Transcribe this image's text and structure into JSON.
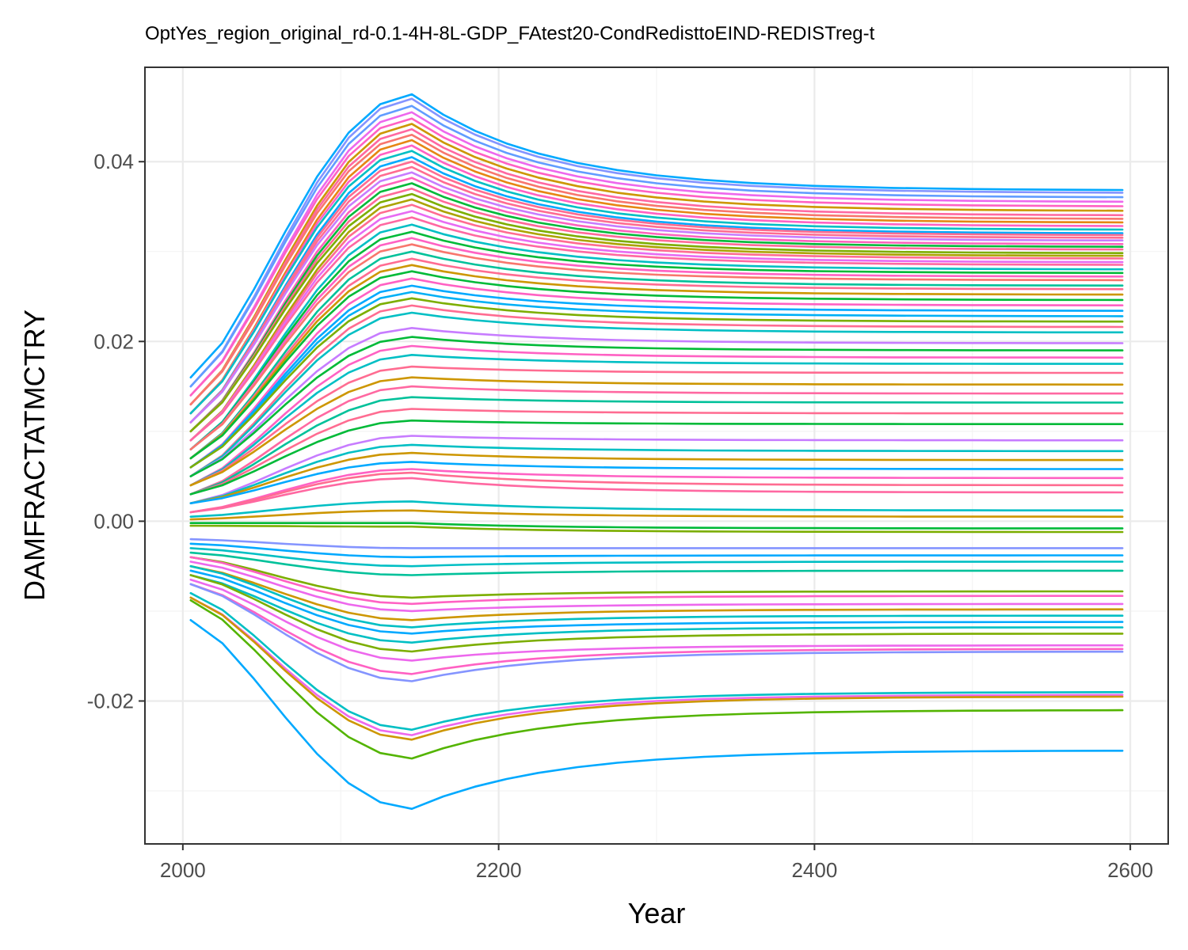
{
  "chart_data": {
    "type": "line",
    "title": "OptYes_region_original_rd-0.1-4H-8L-GDP_FAtest20-CondRedisttoEIND-REDISTreg-t",
    "xlabel": "Year",
    "ylabel": "DAMFRACTATMCTRY",
    "xlim": [
      1976,
      2624
    ],
    "ylim": [
      -0.0359,
      0.0505
    ],
    "x_ticks": [
      2000,
      2200,
      2400,
      2600
    ],
    "x_tick_labels": [
      "2000",
      "2200",
      "2400",
      "2600"
    ],
    "y_ticks": [
      -0.02,
      0.0,
      0.02,
      0.04
    ],
    "y_tick_labels": [
      "-0.02",
      "0.00",
      "0.02",
      "0.04"
    ],
    "grid": true,
    "legend": "none",
    "x": [
      2005,
      2025,
      2045,
      2065,
      2085,
      2105,
      2125,
      2145,
      2165,
      2185,
      2205,
      2225,
      2250,
      2275,
      2300,
      2330,
      2360,
      2400,
      2450,
      2500,
      2550,
      2595
    ],
    "series_shape": "each series = value_2005 + (peak - value_2005) * rise(x) then relaxes toward end value; peak near 2145",
    "series": [
      {
        "start": 0.016,
        "peak": 0.0475,
        "end": 0.0368,
        "color": "#00A9FF"
      },
      {
        "start": 0.015,
        "peak": 0.047,
        "end": 0.0365,
        "color": "#8494FF"
      },
      {
        "start": 0.015,
        "peak": 0.0462,
        "end": 0.036,
        "color": "#619CFF"
      },
      {
        "start": 0.014,
        "peak": 0.0455,
        "end": 0.0355,
        "color": "#ED68ED"
      },
      {
        "start": 0.014,
        "peak": 0.0448,
        "end": 0.035,
        "color": "#FF61C3"
      },
      {
        "start": 0.013,
        "peak": 0.0442,
        "end": 0.0345,
        "color": "#CD9600"
      },
      {
        "start": 0.013,
        "peak": 0.0436,
        "end": 0.034,
        "color": "#FF68A1"
      },
      {
        "start": 0.013,
        "peak": 0.043,
        "end": 0.0336,
        "color": "#F8766D"
      },
      {
        "start": 0.012,
        "peak": 0.0424,
        "end": 0.0332,
        "color": "#E68613"
      },
      {
        "start": 0.012,
        "peak": 0.0418,
        "end": 0.0328,
        "color": "#FF61C3"
      },
      {
        "start": 0.012,
        "peak": 0.0412,
        "end": 0.0324,
        "color": "#00BFC4"
      },
      {
        "start": 0.011,
        "peak": 0.0405,
        "end": 0.032,
        "color": "#00A9FF"
      },
      {
        "start": 0.011,
        "peak": 0.04,
        "end": 0.0318,
        "color": "#FF6C91"
      },
      {
        "start": 0.011,
        "peak": 0.0394,
        "end": 0.0315,
        "color": "#FF6C91"
      },
      {
        "start": 0.011,
        "peak": 0.0388,
        "end": 0.0312,
        "color": "#C77CFF"
      },
      {
        "start": 0.01,
        "peak": 0.0382,
        "end": 0.0308,
        "color": "#FF62BC"
      },
      {
        "start": 0.01,
        "peak": 0.0376,
        "end": 0.0305,
        "color": "#00BA38"
      },
      {
        "start": 0.01,
        "peak": 0.037,
        "end": 0.0302,
        "color": "#FF6A98"
      },
      {
        "start": 0.01,
        "peak": 0.0364,
        "end": 0.0298,
        "color": "#7CAE00"
      },
      {
        "start": 0.009,
        "peak": 0.0358,
        "end": 0.0295,
        "color": "#ABA300"
      },
      {
        "start": 0.009,
        "peak": 0.0352,
        "end": 0.0292,
        "color": "#FF6C91"
      },
      {
        "start": 0.009,
        "peak": 0.0345,
        "end": 0.0288,
        "color": "#E76BF3"
      },
      {
        "start": 0.009,
        "peak": 0.0338,
        "end": 0.0285,
        "color": "#FF68A1"
      },
      {
        "start": 0.008,
        "peak": 0.033,
        "end": 0.028,
        "color": "#00BFC4"
      },
      {
        "start": 0.008,
        "peak": 0.0322,
        "end": 0.0276,
        "color": "#00BA38"
      },
      {
        "start": 0.008,
        "peak": 0.0315,
        "end": 0.0272,
        "color": "#FF61C3"
      },
      {
        "start": 0.008,
        "peak": 0.0308,
        "end": 0.0268,
        "color": "#F8766D"
      },
      {
        "start": 0.007,
        "peak": 0.03,
        "end": 0.0262,
        "color": "#00C19A"
      },
      {
        "start": 0.007,
        "peak": 0.0292,
        "end": 0.0258,
        "color": "#FF6C91"
      },
      {
        "start": 0.007,
        "peak": 0.0285,
        "end": 0.0252,
        "color": "#CD9600"
      },
      {
        "start": 0.007,
        "peak": 0.0278,
        "end": 0.0246,
        "color": "#00BA38"
      },
      {
        "start": 0.006,
        "peak": 0.027,
        "end": 0.024,
        "color": "#FF61C3"
      },
      {
        "start": 0.006,
        "peak": 0.0262,
        "end": 0.0234,
        "color": "#00A9FF"
      },
      {
        "start": 0.006,
        "peak": 0.0255,
        "end": 0.0228,
        "color": "#00B0F6"
      },
      {
        "start": 0.006,
        "peak": 0.0248,
        "end": 0.0222,
        "color": "#7CAE00"
      },
      {
        "start": 0.005,
        "peak": 0.024,
        "end": 0.0216,
        "color": "#FF6C91"
      },
      {
        "start": 0.005,
        "peak": 0.0232,
        "end": 0.021,
        "color": "#00BFC4"
      },
      {
        "start": 0.005,
        "peak": 0.0215,
        "end": 0.0198,
        "color": "#C77CFF"
      },
      {
        "start": 0.005,
        "peak": 0.0205,
        "end": 0.019,
        "color": "#00BA38"
      },
      {
        "start": 0.004,
        "peak": 0.0195,
        "end": 0.0182,
        "color": "#FF61C3"
      },
      {
        "start": 0.004,
        "peak": 0.0185,
        "end": 0.0175,
        "color": "#00BFC4"
      },
      {
        "start": 0.004,
        "peak": 0.0172,
        "end": 0.0165,
        "color": "#FF6C91"
      },
      {
        "start": 0.004,
        "peak": 0.016,
        "end": 0.0152,
        "color": "#CD9600"
      },
      {
        "start": 0.003,
        "peak": 0.015,
        "end": 0.0142,
        "color": "#FF68A1"
      },
      {
        "start": 0.003,
        "peak": 0.0138,
        "end": 0.0132,
        "color": "#00C19A"
      },
      {
        "start": 0.003,
        "peak": 0.0125,
        "end": 0.012,
        "color": "#FF6C91"
      },
      {
        "start": 0.003,
        "peak": 0.0112,
        "end": 0.0108,
        "color": "#00BA38"
      },
      {
        "start": 0.002,
        "peak": 0.0095,
        "end": 0.009,
        "color": "#C77CFF"
      },
      {
        "start": 0.002,
        "peak": 0.0085,
        "end": 0.0078,
        "color": "#00BFC4"
      },
      {
        "start": 0.002,
        "peak": 0.0076,
        "end": 0.0068,
        "color": "#CD9600"
      },
      {
        "start": 0.002,
        "peak": 0.0066,
        "end": 0.0058,
        "color": "#00A9FF"
      },
      {
        "start": 0.001,
        "peak": 0.0058,
        "end": 0.0048,
        "color": "#FF61C3"
      },
      {
        "start": 0.001,
        "peak": 0.0054,
        "end": 0.004,
        "color": "#FF6C91"
      },
      {
        "start": 0.001,
        "peak": 0.0048,
        "end": 0.0032,
        "color": "#FF68A1"
      },
      {
        "start": 0.0005,
        "peak": 0.0022,
        "end": 0.0012,
        "color": "#00BFC4"
      },
      {
        "start": 0.0002,
        "peak": 0.0012,
        "end": 0.0005,
        "color": "#CD9600"
      },
      {
        "start": -0.0002,
        "peak": -0.0002,
        "end": -0.0008,
        "color": "#00BA38"
      },
      {
        "start": -0.0005,
        "peak": -0.0006,
        "end": -0.0012,
        "color": "#7CAE00"
      },
      {
        "start": -0.002,
        "peak": -0.003,
        "end": -0.003,
        "color": "#8494FF"
      },
      {
        "start": -0.0025,
        "peak": -0.004,
        "end": -0.0038,
        "color": "#00A9FF"
      },
      {
        "start": -0.003,
        "peak": -0.005,
        "end": -0.0045,
        "color": "#00BFC4"
      },
      {
        "start": -0.0035,
        "peak": -0.006,
        "end": -0.0055,
        "color": "#00C19A"
      },
      {
        "start": -0.004,
        "peak": -0.0085,
        "end": -0.0078,
        "color": "#7CAE00"
      },
      {
        "start": -0.004,
        "peak": -0.0092,
        "end": -0.0083,
        "color": "#FF61C3"
      },
      {
        "start": -0.0045,
        "peak": -0.01,
        "end": -0.0092,
        "color": "#ED68ED"
      },
      {
        "start": -0.005,
        "peak": -0.011,
        "end": -0.0098,
        "color": "#CD9600"
      },
      {
        "start": -0.005,
        "peak": -0.0118,
        "end": -0.0105,
        "color": "#00BFC4"
      },
      {
        "start": -0.0055,
        "peak": -0.0125,
        "end": -0.0112,
        "color": "#00A9FF"
      },
      {
        "start": -0.006,
        "peak": -0.0135,
        "end": -0.0118,
        "color": "#00BFC4"
      },
      {
        "start": -0.006,
        "peak": -0.0145,
        "end": -0.0125,
        "color": "#7CAE00"
      },
      {
        "start": -0.0065,
        "peak": -0.0155,
        "end": -0.0138,
        "color": "#ED68ED"
      },
      {
        "start": -0.007,
        "peak": -0.017,
        "end": -0.0142,
        "color": "#FF61C3"
      },
      {
        "start": -0.007,
        "peak": -0.0178,
        "end": -0.0145,
        "color": "#8494FF"
      },
      {
        "start": -0.008,
        "peak": -0.0232,
        "end": -0.019,
        "color": "#00BFC4"
      },
      {
        "start": -0.0085,
        "peak": -0.0238,
        "end": -0.0193,
        "color": "#ED68ED"
      },
      {
        "start": -0.0085,
        "peak": -0.0243,
        "end": -0.0195,
        "color": "#CD9600"
      },
      {
        "start": -0.0088,
        "peak": -0.0264,
        "end": -0.021,
        "color": "#53B400"
      },
      {
        "start": -0.011,
        "peak": -0.032,
        "end": -0.0255,
        "color": "#00A9FF"
      }
    ]
  }
}
